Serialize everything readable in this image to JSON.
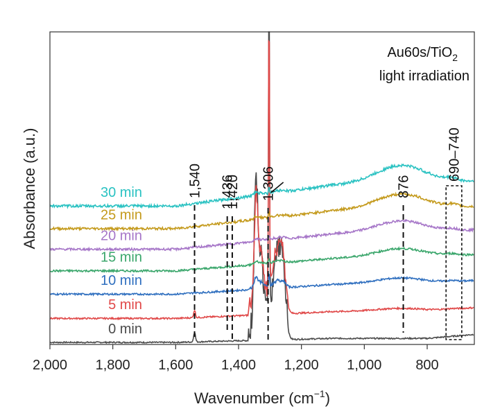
{
  "chart_data": {
    "type": "line",
    "xlabel": "Wavenumber (cm",
    "xlabel_sup": "−1",
    "xlabel_end": ")",
    "ylabel": "Absorbance (a.u.)",
    "xlim": [
      2000,
      650
    ],
    "x_reversed": true,
    "ylim": [
      0,
      1
    ],
    "grid": false,
    "x_ticks": [
      2000,
      1800,
      1600,
      1400,
      1200,
      1000,
      800
    ],
    "x_tick_labels": [
      "2,000",
      "1,800",
      "1,600",
      "1,400",
      "1,200",
      "1,000",
      "800"
    ],
    "inset_title_line1": "Au60s/TiO",
    "inset_title_sub": "2",
    "inset_title_line2": "light irradiation",
    "series": [
      {
        "name": "0 min",
        "color": "#4a4a4a",
        "offset": 0.0
      },
      {
        "name": "5 min",
        "color": "#e04848",
        "offset": 0.072
      },
      {
        "name": "10 min",
        "color": "#2f6fbf",
        "offset": 0.145
      },
      {
        "name": "15 min",
        "color": "#3aa66b",
        "offset": 0.215
      },
      {
        "name": "20 min",
        "color": "#a676c8",
        "offset": 0.28
      },
      {
        "name": "25 min",
        "color": "#c49a1c",
        "offset": 0.342
      },
      {
        "name": "30 min",
        "color": "#2ac2c2",
        "offset": 0.41
      }
    ],
    "peak_annotations": [
      {
        "label": "1,540",
        "x": 1540
      },
      {
        "label": "1,436",
        "x": 1436
      },
      {
        "label": "1,420",
        "x": 1420
      },
      {
        "label": "1,306",
        "x": 1306
      },
      {
        "label": "876",
        "x": 876
      }
    ],
    "region_annotation": {
      "label": "690–740",
      "x_from": 740,
      "x_to": 690
    }
  }
}
